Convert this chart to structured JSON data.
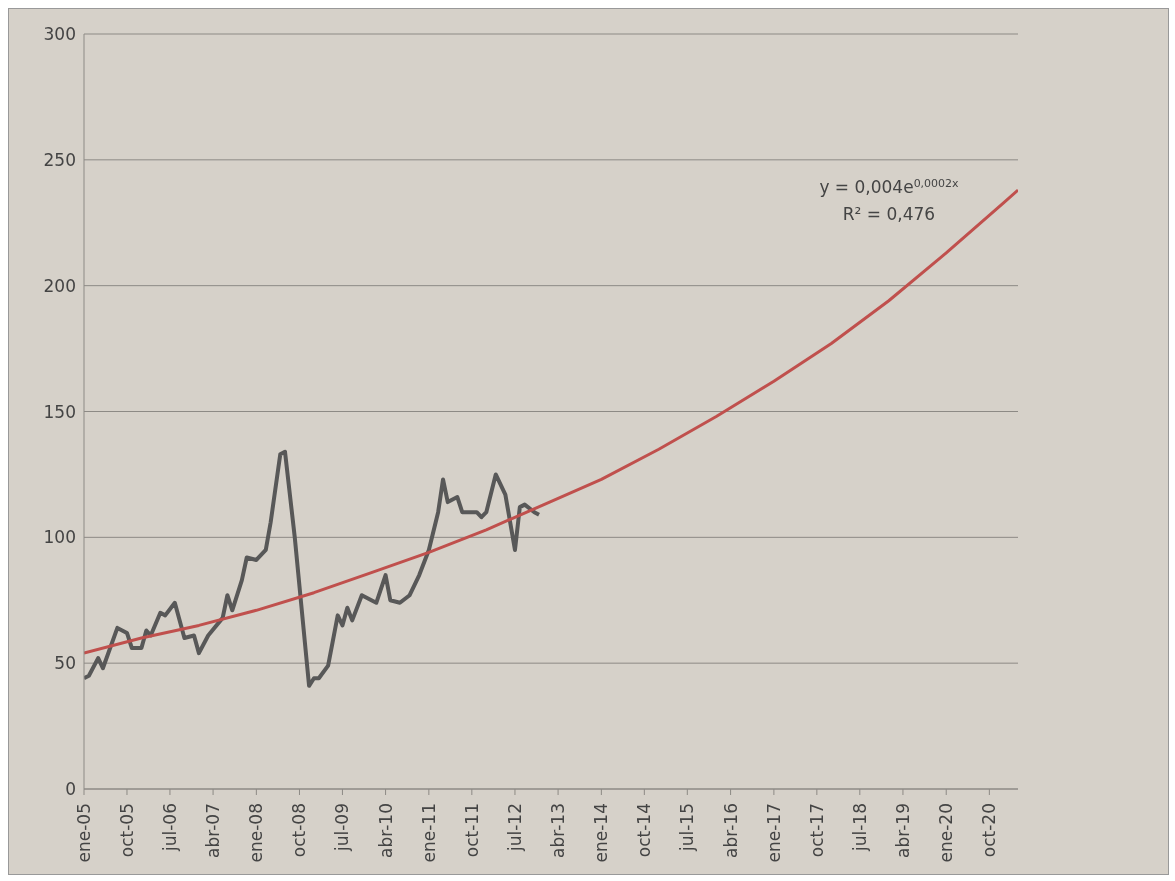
{
  "chart_data": {
    "type": "line",
    "x": [
      "2005-01",
      "2005-02",
      "2005-04",
      "2005-05",
      "2005-08",
      "2005-10",
      "2005-11",
      "2006-01",
      "2006-02",
      "2006-03",
      "2006-05",
      "2006-06",
      "2006-08",
      "2006-10",
      "2006-12",
      "2007-01",
      "2007-03",
      "2007-06",
      "2007-07",
      "2007-08",
      "2007-10",
      "2007-11",
      "2008-01",
      "2008-03",
      "2008-04",
      "2008-06",
      "2008-07",
      "2008-09",
      "2008-12",
      "2009-01",
      "2009-02",
      "2009-04",
      "2009-06",
      "2009-07",
      "2009-08",
      "2009-09",
      "2009-11",
      "2010-01",
      "2010-02",
      "2010-04",
      "2010-05",
      "2010-07",
      "2010-09",
      "2010-11",
      "2011-01",
      "2011-03",
      "2011-04",
      "2011-05",
      "2011-07",
      "2011-08",
      "2011-10",
      "2011-11",
      "2011-12",
      "2012-01",
      "2012-03",
      "2012-05",
      "2012-07",
      "2012-08",
      "2012-09",
      "2012-11",
      "2012-12"
    ],
    "series": [
      {
        "color": "#585858",
        "values": [
          44,
          45,
          52,
          48,
          64,
          62,
          56,
          56,
          63,
          61,
          70,
          69,
          74,
          60,
          61,
          54,
          61,
          68,
          77,
          71,
          83,
          92,
          91,
          95,
          106,
          133,
          134,
          100,
          41,
          44,
          44,
          49,
          69,
          65,
          72,
          67,
          77,
          75,
          74,
          85,
          75,
          74,
          77,
          85,
          95,
          110,
          123,
          114,
          116,
          110,
          110,
          110,
          108,
          110,
          125,
          117,
          95,
          112,
          113,
          110,
          109
        ]
      },
      {
        "type": "line",
        "color": "#c0504d",
        "x": [
          "2005-01",
          "2006-01",
          "2007-01",
          "2008-01",
          "2009-01",
          "2010-01",
          "2011-01",
          "2012-01",
          "2013-01",
          "2014-01",
          "2015-01",
          "2016-01",
          "2017-01",
          "2018-01",
          "2019-01",
          "2020-01",
          "2021-01",
          "2021-04"
        ],
        "values": [
          54,
          60,
          65,
          71,
          78,
          86,
          94,
          103,
          113,
          123,
          135,
          148,
          162,
          177,
          194,
          213,
          233,
          238
        ]
      }
    ],
    "xlim": [
      "2005-01",
      "2021-04"
    ],
    "xticks": [
      {
        "value": "2005-01",
        "label": "ene-05"
      },
      {
        "value": "2005-10",
        "label": "oct-05"
      },
      {
        "value": "2006-07",
        "label": "jul-06"
      },
      {
        "value": "2007-04",
        "label": "abr-07"
      },
      {
        "value": "2008-01",
        "label": "ene-08"
      },
      {
        "value": "2008-10",
        "label": "oct-08"
      },
      {
        "value": "2009-07",
        "label": "jul-09"
      },
      {
        "value": "2010-04",
        "label": "abr-10"
      },
      {
        "value": "2011-01",
        "label": "ene-11"
      },
      {
        "value": "2011-10",
        "label": "oct-11"
      },
      {
        "value": "2012-07",
        "label": "jul-12"
      },
      {
        "value": "2013-04",
        "label": "abr-13"
      },
      {
        "value": "2014-01",
        "label": "ene-14"
      },
      {
        "value": "2014-10",
        "label": "oct-14"
      },
      {
        "value": "2015-07",
        "label": "jul-15"
      },
      {
        "value": "2016-04",
        "label": "abr-16"
      },
      {
        "value": "2017-01",
        "label": "ene-17"
      },
      {
        "value": "2017-10",
        "label": "oct-17"
      },
      {
        "value": "2018-07",
        "label": "jul-18"
      },
      {
        "value": "2019-04",
        "label": "abr-19"
      },
      {
        "value": "2020-01",
        "label": "ene-20"
      },
      {
        "value": "2020-10",
        "label": "oct-20"
      }
    ],
    "ylim": [
      0,
      300
    ],
    "yticks": [
      0,
      50,
      100,
      150,
      200,
      250,
      300
    ],
    "grid": "y",
    "line_style": "solid",
    "annotations": [
      "y = 0,004e$^{0,0002x}$",
      "R² = 0,476"
    ]
  }
}
